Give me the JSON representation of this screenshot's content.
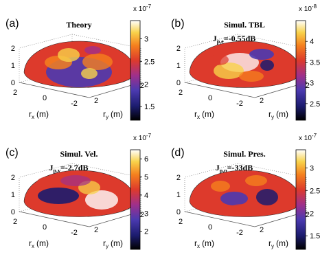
{
  "chart_data": [
    {
      "type": "heatmap",
      "panel_label": "(a)",
      "title": "Theory",
      "subtitle": "",
      "subtitle_sub": "",
      "subtitle_rest": "",
      "surface": "hemisphere",
      "xlabel": "r",
      "xlabel_sub": "x",
      "xlabel_unit": "(m)",
      "ylabel": "r",
      "ylabel_sub": "y",
      "ylabel_unit": "(m)",
      "x_ticks": [
        "2",
        "0",
        "-2"
      ],
      "y_ticks": [
        "2",
        "-2"
      ],
      "z_ticks": [
        "0",
        "1",
        "2"
      ],
      "zlim": [
        0,
        2
      ],
      "colorbar": {
        "exponent": "x 10",
        "exponent_power": "-7",
        "range": [
          1.2,
          3.4
        ],
        "ticks": [
          "3",
          "2.5",
          "2",
          "1.5"
        ],
        "tick_values": [
          3,
          2.5,
          2,
          1.5
        ]
      },
      "colormap": "hot-cold (black-blue-purple-red-orange-yellow-white)"
    },
    {
      "type": "heatmap",
      "panel_label": "(b)",
      "title": "Simul. TBL",
      "subtitle": "J",
      "subtitle_sub": "p,e",
      "subtitle_rest": "=-0.55dB",
      "surface": "hemisphere",
      "xlabel": "r",
      "xlabel_sub": "x",
      "xlabel_unit": "(m)",
      "ylabel": "r",
      "ylabel_sub": "y",
      "ylabel_unit": "(m)",
      "x_ticks": [
        "2",
        "0",
        "-2"
      ],
      "y_ticks": [
        "2",
        "-2"
      ],
      "z_ticks": [
        "0",
        "1",
        "2"
      ],
      "zlim": [
        0,
        2
      ],
      "colorbar": {
        "exponent": "x 10",
        "exponent_power": "-8",
        "range": [
          2.1,
          4.5
        ],
        "ticks": [
          "4",
          "3.5",
          "3",
          "2.5"
        ],
        "tick_values": [
          4,
          3.5,
          3,
          2.5
        ]
      },
      "colormap": "hot-cold (black-blue-purple-red-orange-yellow-white)"
    },
    {
      "type": "heatmap",
      "panel_label": "(c)",
      "title": "Simul. Vel.",
      "subtitle": "J",
      "subtitle_sub": "p,v",
      "subtitle_rest": "=-2.7dB",
      "surface": "hemisphere",
      "xlabel": "r",
      "xlabel_sub": "x",
      "xlabel_unit": "(m)",
      "ylabel": "r",
      "ylabel_sub": "y",
      "ylabel_unit": "(m)",
      "x_ticks": [
        "2",
        "0",
        "-2"
      ],
      "y_ticks": [
        "2",
        "-2"
      ],
      "z_ticks": [
        "0",
        "1",
        "2"
      ],
      "zlim": [
        0,
        2
      ],
      "colorbar": {
        "exponent": "x 10",
        "exponent_power": "-7",
        "range": [
          1.0,
          6.5
        ],
        "ticks": [
          "6",
          "5",
          "4",
          "3",
          "2"
        ],
        "tick_values": [
          6,
          5,
          4,
          3,
          2
        ]
      },
      "colormap": "hot-cold (black-blue-purple-red-orange-yellow-white)"
    },
    {
      "type": "heatmap",
      "panel_label": "(d)",
      "title": "Simul. Pres.",
      "subtitle": "J",
      "subtitle_sub": "p,p",
      "subtitle_rest": "=-33dB",
      "surface": "hemisphere",
      "xlabel": "r",
      "xlabel_sub": "x",
      "xlabel_unit": "(m)",
      "ylabel": "r",
      "ylabel_sub": "y",
      "ylabel_unit": "(m)",
      "x_ticks": [
        "2",
        "0",
        "-2"
      ],
      "y_ticks": [
        "2",
        "-2"
      ],
      "z_ticks": [
        "0",
        "1",
        "2"
      ],
      "zlim": [
        0,
        2
      ],
      "colorbar": {
        "exponent": "x 10",
        "exponent_power": "-7",
        "range": [
          1.2,
          3.4
        ],
        "ticks": [
          "3",
          "2.5",
          "2",
          "1.5"
        ],
        "tick_values": [
          3,
          2.5,
          2,
          1.5
        ]
      },
      "colormap": "hot-cold (black-blue-purple-red-orange-yellow-white)"
    }
  ]
}
